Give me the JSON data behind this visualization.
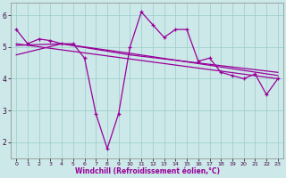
{
  "xlabel": "Windchill (Refroidissement éolien,°C)",
  "bg_color": "#cce8e8",
  "line_color": "#990099",
  "grid_color": "#99cccc",
  "xlim": [
    -0.5,
    23.5
  ],
  "ylim": [
    1.5,
    6.4
  ],
  "xticks": [
    0,
    1,
    2,
    3,
    4,
    5,
    6,
    7,
    8,
    9,
    10,
    11,
    12,
    13,
    14,
    15,
    16,
    17,
    18,
    19,
    20,
    21,
    22,
    23
  ],
  "yticks": [
    2,
    3,
    4,
    5,
    6
  ],
  "line1_x": [
    0,
    1,
    2,
    3,
    4,
    5,
    6,
    7,
    8,
    9,
    10,
    11,
    12,
    13,
    14,
    15,
    16,
    17,
    18,
    19,
    20,
    21,
    22,
    23
  ],
  "line1_y": [
    5.55,
    5.1,
    5.25,
    5.2,
    5.1,
    5.1,
    4.65,
    2.9,
    1.8,
    2.9,
    5.0,
    6.1,
    5.7,
    5.3,
    5.55,
    5.55,
    4.55,
    4.65,
    4.2,
    4.1,
    4.0,
    4.15,
    3.5,
    4.0
  ],
  "trend1_x": [
    0,
    23
  ],
  "trend1_y": [
    5.1,
    4.0
  ],
  "trend2_x": [
    0,
    4,
    10,
    23
  ],
  "trend2_y": [
    5.05,
    5.1,
    4.8,
    4.1
  ],
  "trend3_x": [
    0,
    4,
    10,
    23
  ],
  "trend3_y": [
    4.75,
    5.1,
    4.75,
    4.2
  ]
}
